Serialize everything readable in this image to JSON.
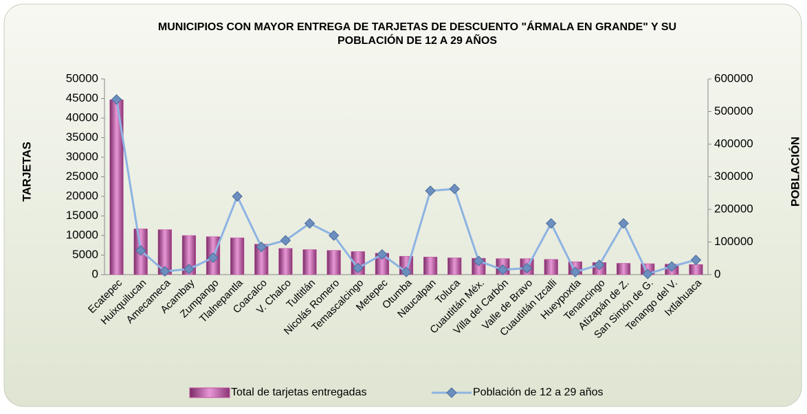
{
  "chart_data": {
    "type": "bar-line",
    "title": "MUNICIPIOS CON MAYOR ENTREGA DE TARJETAS DE DESCUENTO \"ÁRMALA EN GRANDE\" Y SU POBLACIÓN DE 12 A 29 AÑOS",
    "y_label": "TARJETAS",
    "y2_label": "POBLACIÓN",
    "categories": [
      "Ecatepec",
      "Huixquilucan",
      "Amecameca",
      "Acambay",
      "Zumpango",
      "Tlalnepantla",
      "Coacalco",
      "V. Chalco",
      "Tultitlán",
      "Nicolás Romero",
      "Temascalcingo",
      "Metepec",
      "Otumba",
      "Naucalpan",
      "Toluca",
      "Cuautitlán Méx.",
      "Villa del Carbón",
      "Valle de Bravo",
      "Cuautitlán Izcalli",
      "Hueypoxtla",
      "Tenancingo",
      "Atizapán de Z.",
      "San Simón de G.",
      "Tenango del V.",
      "Ixtlahuaca"
    ],
    "series": [
      {
        "name": "Total de tarjetas entregadas",
        "type": "bar",
        "color": "#c0509f",
        "values": [
          44700,
          11700,
          11500,
          10000,
          9700,
          9400,
          7800,
          6700,
          6400,
          6200,
          5900,
          5500,
          4700,
          4500,
          4300,
          4200,
          4100,
          4100,
          3900,
          3300,
          3100,
          2900,
          2800,
          2700,
          2600
        ]
      },
      {
        "name": "Población de 12 a 29 años",
        "type": "line",
        "axis": "y2",
        "color": "#8db3e2",
        "values": [
          537000,
          74000,
          10000,
          17000,
          52000,
          240000,
          85000,
          105000,
          157000,
          120000,
          20000,
          62000,
          8000,
          257000,
          263000,
          42000,
          15000,
          20000,
          157000,
          8000,
          30000,
          157000,
          2000,
          25000,
          45000
        ]
      }
    ],
    "ylim": [
      0,
      50000
    ],
    "yticks": [
      0,
      5000,
      10000,
      15000,
      20000,
      25000,
      30000,
      35000,
      40000,
      45000,
      50000
    ],
    "y2lim": [
      0,
      600000
    ],
    "y2ticks": [
      0,
      100000,
      200000,
      300000,
      400000,
      500000,
      600000
    ],
    "legend": "bottom"
  }
}
